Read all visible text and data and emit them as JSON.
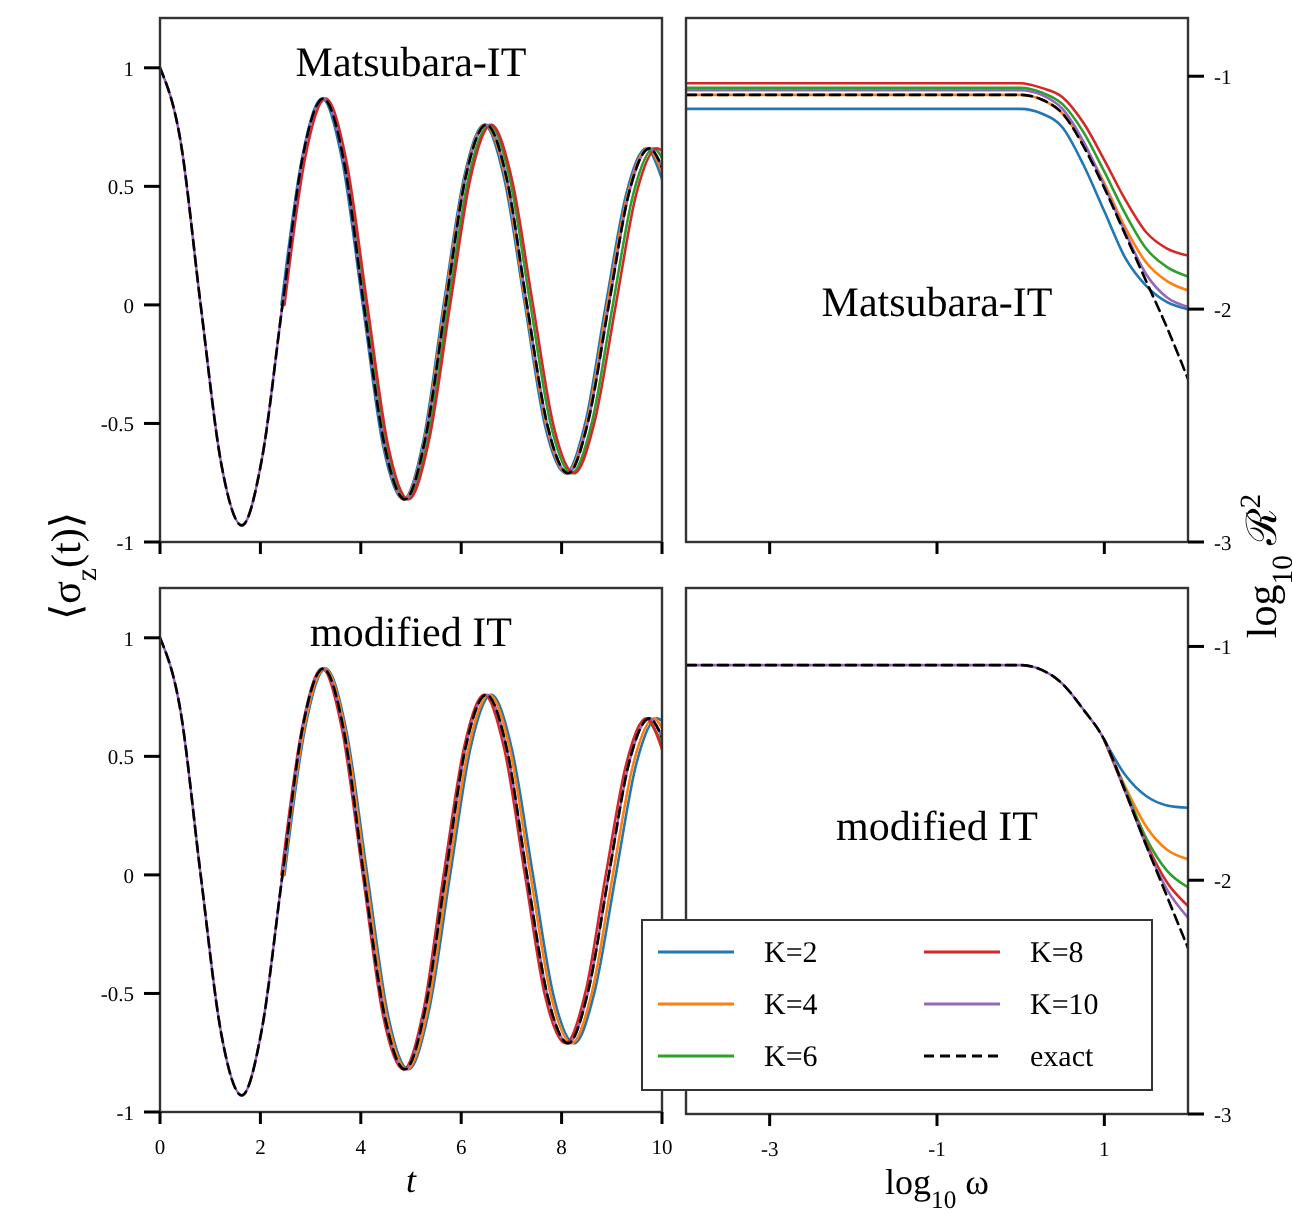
{
  "chart_data": [
    {
      "type": "line",
      "title": "Matsubara-IT",
      "ylabel": "⟨σ$_{z}$(t)⟩",
      "xlim": [
        0,
        10
      ],
      "xticks": [
        0,
        2,
        4,
        6,
        8,
        10
      ],
      "ylim": [
        -1,
        1.21
      ],
      "yticks": [
        -1,
        -0.5,
        0,
        0.5,
        1
      ],
      "tick_labels": "y",
      "legend": false,
      "series": [
        {
          "color": "#1f77b4",
          "x": [
            2.42,
            2.83,
            3.23,
            3.63,
            4.04,
            4.44,
            4.85,
            5.25,
            5.65,
            6.06,
            6.46,
            6.86,
            7.27,
            7.67,
            8.08,
            8.48,
            8.88,
            9.29,
            9.69,
            10
          ],
          "values": [
            0,
            0.62,
            0.87,
            0.61,
            0,
            -0.59,
            -0.82,
            -0.57,
            0,
            0.54,
            0.76,
            0.53,
            0,
            -0.51,
            -0.71,
            -0.49,
            0,
            0.47,
            0.66,
            0.53
          ]
        },
        {
          "color": "#ff7f0e",
          "x": [
            4.46,
            4.86,
            5.27,
            5.67,
            6.08,
            6.48,
            6.89,
            7.29,
            7.7,
            8.1,
            8.51,
            8.91,
            9.32,
            9.72,
            10
          ],
          "values": [
            -0.59,
            -0.82,
            -0.57,
            0,
            0.54,
            0.76,
            0.53,
            0,
            -0.51,
            -0.71,
            -0.49,
            0,
            0.47,
            0.66,
            0.56
          ]
        },
        {
          "color": "#2ca02c",
          "x": [
            3.69,
            4.1,
            4.51,
            4.92,
            5.33,
            5.74,
            6.15,
            6.56,
            6.97,
            7.38,
            7.79,
            8.2,
            8.61,
            9.02,
            9.43,
            9.84,
            10
          ],
          "values": [
            0.61,
            0,
            -0.59,
            -0.82,
            -0.57,
            0,
            0.54,
            0.76,
            0.53,
            0,
            -0.51,
            -0.71,
            -0.49,
            0,
            0.47,
            0.66,
            0.62
          ]
        },
        {
          "color": "#d62728",
          "x": [
            2.48,
            2.89,
            3.3,
            3.71,
            4.13,
            4.54,
            4.95,
            5.36,
            5.78,
            6.19,
            6.6,
            7.01,
            7.43,
            7.84,
            8.25,
            8.66,
            9.08,
            9.49,
            9.9,
            10
          ],
          "values": [
            0,
            0.62,
            0.87,
            0.61,
            0,
            -0.59,
            -0.82,
            -0.57,
            0,
            0.54,
            0.76,
            0.53,
            0,
            -0.51,
            -0.71,
            -0.49,
            0,
            0.47,
            0.66,
            0.65
          ]
        },
        {
          "color": "#9467bd",
          "x": [
            0,
            0.41,
            0.81,
            1.22,
            1.63,
            2.03,
            2.44,
            2.84,
            3.25,
            3.66,
            4.06,
            4.47,
            4.88,
            5.28,
            5.69,
            6.09,
            6.5,
            6.91,
            7.31,
            7.72,
            8.13,
            8.53,
            8.94,
            9.34,
            9.75,
            10
          ],
          "values": [
            1,
            0.69,
            0,
            -0.67,
            -0.93,
            -0.65,
            0,
            0.62,
            0.87,
            0.61,
            0,
            -0.59,
            -0.82,
            -0.57,
            0,
            0.54,
            0.76,
            0.53,
            0,
            -0.51,
            -0.71,
            -0.49,
            0,
            0.47,
            0.66,
            0.58
          ]
        },
        {
          "color": "#000000",
          "line_style": "dashed",
          "x": [
            0,
            0.41,
            0.81,
            1.22,
            1.63,
            2.03,
            2.44,
            2.84,
            3.25,
            3.66,
            4.06,
            4.47,
            4.88,
            5.28,
            5.69,
            6.09,
            6.5,
            6.91,
            7.31,
            7.72,
            8.13,
            8.53,
            8.94,
            9.34,
            9.75,
            10
          ],
          "values": [
            1,
            0.69,
            0,
            -0.67,
            -0.93,
            -0.65,
            0,
            0.62,
            0.87,
            0.61,
            0,
            -0.59,
            -0.82,
            -0.57,
            0,
            0.54,
            0.76,
            0.53,
            0,
            -0.51,
            -0.71,
            -0.49,
            0,
            0.47,
            0.66,
            0.58
          ]
        }
      ]
    },
    {
      "type": "line",
      "title": "Matsubara-IT",
      "y2label": "log$_{10}$ ℛ$^{2}$",
      "xlim": [
        -4,
        2
      ],
      "xticks": [
        -3,
        -1,
        1
      ],
      "y2lim": [
        -3,
        -0.75
      ],
      "y2ticks": [
        -3,
        -2,
        -1
      ],
      "tick_labels": "y",
      "legend": false,
      "x": [
        -4,
        -3,
        -2,
        -1,
        -0.5,
        0,
        0.25,
        0.5,
        0.75,
        1,
        1.25,
        1.5,
        1.75,
        2
      ],
      "series": [
        {
          "color": "#1f77b4",
          "axis": "y2",
          "values": [
            -1.14,
            -1.14,
            -1.14,
            -1.14,
            -1.14,
            -1.14,
            -1.16,
            -1.22,
            -1.38,
            -1.58,
            -1.78,
            -1.9,
            -1.97,
            -2.0
          ]
        },
        {
          "color": "#ff7f0e",
          "axis": "y2",
          "values": [
            -1.08,
            -1.08,
            -1.08,
            -1.08,
            -1.08,
            -1.08,
            -1.1,
            -1.16,
            -1.29,
            -1.46,
            -1.65,
            -1.8,
            -1.88,
            -1.92
          ]
        },
        {
          "color": "#2ca02c",
          "axis": "y2",
          "values": [
            -1.05,
            -1.05,
            -1.05,
            -1.05,
            -1.05,
            -1.05,
            -1.07,
            -1.12,
            -1.24,
            -1.41,
            -1.59,
            -1.74,
            -1.82,
            -1.86
          ]
        },
        {
          "color": "#d62728",
          "axis": "y2",
          "values": [
            -1.03,
            -1.03,
            -1.03,
            -1.03,
            -1.03,
            -1.03,
            -1.05,
            -1.09,
            -1.2,
            -1.36,
            -1.53,
            -1.67,
            -1.74,
            -1.77
          ]
        },
        {
          "color": "#9467bd",
          "axis": "y2",
          "values": [
            -1.06,
            -1.06,
            -1.06,
            -1.06,
            -1.06,
            -1.06,
            -1.08,
            -1.14,
            -1.28,
            -1.47,
            -1.67,
            -1.85,
            -1.95,
            -1.99
          ]
        },
        {
          "color": "#000000",
          "axis": "y2",
          "line_style": "dashed",
          "values": [
            -1.08,
            -1.08,
            -1.08,
            -1.08,
            -1.08,
            -1.08,
            -1.1,
            -1.16,
            -1.3,
            -1.48,
            -1.68,
            -1.88,
            -2.08,
            -2.3
          ]
        }
      ]
    },
    {
      "type": "line",
      "title": "modified IT",
      "xlabel": "t",
      "xlim": [
        0,
        10
      ],
      "xticks": [
        0,
        2,
        4,
        6,
        8,
        10
      ],
      "ylim": [
        -1,
        1.21
      ],
      "yticks": [
        -1,
        -0.5,
        0,
        0.5,
        1
      ],
      "legend": false,
      "series": [
        {
          "color": "#1f77b4",
          "x": [
            2.48,
            2.89,
            3.3,
            3.71,
            4.13,
            4.54,
            4.95,
            5.36,
            5.78,
            6.19,
            6.6,
            7.01,
            7.43,
            7.84,
            8.25,
            8.66,
            9.08,
            9.49,
            9.9,
            10
          ],
          "values": [
            0,
            0.62,
            0.87,
            0.61,
            0,
            -0.59,
            -0.82,
            -0.57,
            0,
            0.54,
            0.76,
            0.53,
            0,
            -0.51,
            -0.71,
            -0.49,
            0,
            0.47,
            0.66,
            0.65
          ]
        },
        {
          "color": "#ff7f0e",
          "x": [
            2.46,
            2.87,
            3.28,
            3.69,
            4.1,
            4.51,
            4.92,
            5.33,
            5.74,
            6.15,
            6.56,
            6.97,
            7.38,
            7.79,
            8.2,
            8.61,
            9.02,
            9.43,
            9.84,
            10
          ],
          "values": [
            0,
            0.62,
            0.87,
            0.61,
            0,
            -0.59,
            -0.82,
            -0.57,
            0,
            0.54,
            0.76,
            0.53,
            0,
            -0.51,
            -0.71,
            -0.49,
            0,
            0.47,
            0.66,
            0.62
          ]
        },
        {
          "color": "#2ca02c",
          "x": [
            9.72,
            10
          ],
          "values": [
            0.66,
            0.56
          ]
        },
        {
          "color": "#d62728",
          "x": [
            2.42,
            2.83,
            3.23,
            3.63,
            4.04,
            4.44,
            4.85,
            5.25,
            5.65,
            6.06,
            6.46,
            6.86,
            7.27,
            7.67,
            8.08,
            8.48,
            8.88,
            9.29,
            9.69,
            10
          ],
          "values": [
            0,
            0.62,
            0.87,
            0.61,
            0,
            -0.59,
            -0.82,
            -0.57,
            0,
            0.54,
            0.76,
            0.53,
            0,
            -0.51,
            -0.71,
            -0.49,
            0,
            0.47,
            0.66,
            0.53
          ]
        },
        {
          "color": "#9467bd",
          "x": [
            0,
            0.41,
            0.81,
            1.22,
            1.63,
            2.03,
            2.44,
            2.84,
            3.25,
            3.66,
            4.06,
            4.47,
            4.88,
            5.28,
            5.69,
            6.09,
            6.5,
            6.91,
            7.31,
            7.72,
            8.13,
            8.53,
            8.94,
            9.34,
            9.75,
            10
          ],
          "values": [
            1,
            0.69,
            0,
            -0.67,
            -0.93,
            -0.65,
            0,
            0.62,
            0.87,
            0.61,
            0,
            -0.59,
            -0.82,
            -0.57,
            0,
            0.54,
            0.76,
            0.53,
            0,
            -0.51,
            -0.71,
            -0.49,
            0,
            0.47,
            0.66,
            0.58
          ]
        },
        {
          "color": "#000000",
          "line_style": "dashed",
          "x": [
            0,
            0.41,
            0.81,
            1.22,
            1.63,
            2.03,
            2.44,
            2.84,
            3.25,
            3.66,
            4.06,
            4.47,
            4.88,
            5.28,
            5.69,
            6.09,
            6.5,
            6.91,
            7.31,
            7.72,
            8.13,
            8.53,
            8.94,
            9.34,
            9.75,
            10
          ],
          "values": [
            1,
            0.69,
            0,
            -0.67,
            -0.93,
            -0.65,
            0,
            0.62,
            0.87,
            0.61,
            0,
            -0.59,
            -0.82,
            -0.57,
            0,
            0.54,
            0.76,
            0.53,
            0,
            -0.51,
            -0.71,
            -0.49,
            0,
            0.47,
            0.66,
            0.58
          ]
        }
      ]
    },
    {
      "type": "line",
      "title": "modified IT",
      "xlabel": "log$_{10}$ ω",
      "xlim": [
        -4,
        2
      ],
      "xticks": [
        -3,
        -1,
        1
      ],
      "y2lim": [
        -3,
        -0.75
      ],
      "y2ticks": [
        -3,
        -2,
        -1
      ],
      "legend": "bottom left",
      "x": [
        -4,
        -3,
        -2,
        -1,
        -0.5,
        0,
        0.25,
        0.5,
        0.75,
        1,
        1.25,
        1.5,
        1.75,
        2
      ],
      "series": [
        {
          "name": "K=2",
          "color": "#1f77b4",
          "axis": "y2",
          "values": [
            null,
            null,
            null,
            null,
            null,
            null,
            null,
            null,
            null,
            -1.4,
            -1.55,
            -1.64,
            -1.68,
            -1.69
          ]
        },
        {
          "name": "K=4",
          "color": "#ff7f0e",
          "axis": "y2",
          "values": [
            null,
            null,
            null,
            null,
            null,
            null,
            null,
            null,
            null,
            -1.4,
            -1.6,
            -1.77,
            -1.87,
            -1.91
          ]
        },
        {
          "name": "K=6",
          "color": "#2ca02c",
          "axis": "y2",
          "values": [
            null,
            null,
            null,
            null,
            null,
            null,
            null,
            null,
            null,
            -1.4,
            -1.61,
            -1.82,
            -1.96,
            -2.03
          ]
        },
        {
          "name": "K=8",
          "color": "#d62728",
          "axis": "y2",
          "values": [
            null,
            null,
            null,
            null,
            null,
            null,
            null,
            null,
            null,
            -1.4,
            -1.62,
            -1.84,
            -2.01,
            -2.11
          ]
        },
        {
          "name": "K=10",
          "color": "#9467bd",
          "axis": "y2",
          "values": [
            -1.08,
            -1.08,
            -1.08,
            -1.08,
            -1.08,
            -1.08,
            -1.1,
            -1.16,
            -1.27,
            -1.4,
            -1.62,
            -1.85,
            -2.04,
            -2.16
          ]
        },
        {
          "name": "exact",
          "color": "#000000",
          "axis": "y2",
          "line_style": "dashed",
          "values": [
            -1.08,
            -1.08,
            -1.08,
            -1.08,
            -1.08,
            -1.08,
            -1.1,
            -1.16,
            -1.27,
            -1.4,
            -1.62,
            -1.85,
            -2.07,
            -2.29
          ]
        }
      ]
    }
  ]
}
